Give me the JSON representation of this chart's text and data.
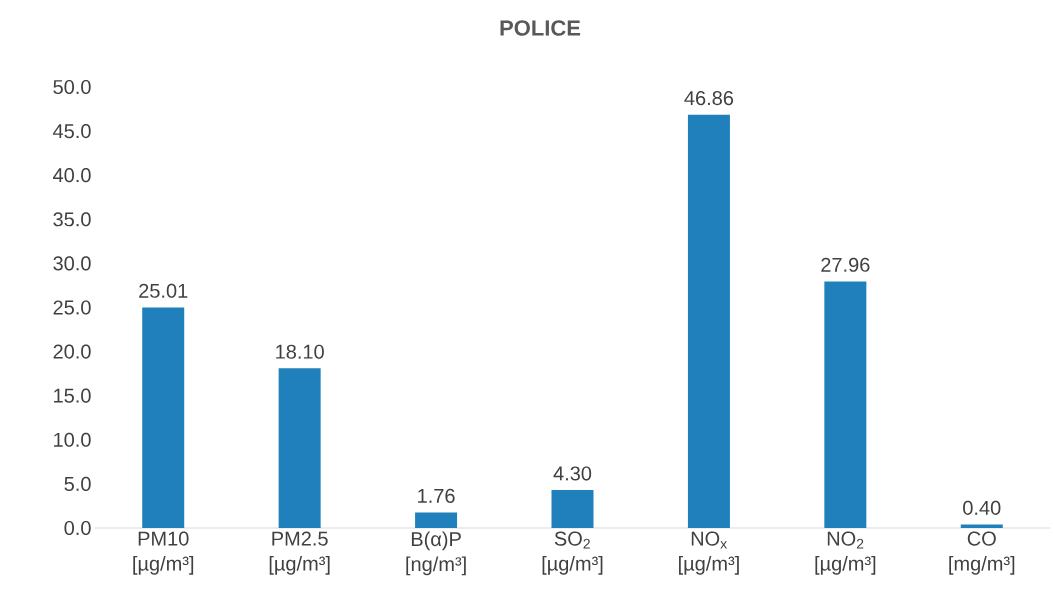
{
  "chart_data": {
    "type": "bar",
    "title": "POLICE",
    "categories": [
      "PM10 [µg/m³]",
      "PM2.5 [µg/m³]",
      "B(α)P [ng/m³]",
      "SO$_{2}$ [µg/m³]",
      "NO$_{x}$ [µg/m³]",
      "NO$_{2}$ [µg/m³]",
      "CO [mg/m³]"
    ],
    "values": [
      25.01,
      18.1,
      1.76,
      4.3,
      46.86,
      27.96,
      0.4
    ],
    "value_labels": [
      "25.01",
      "18.10",
      "1.76",
      "4.30",
      "46.86",
      "27.96",
      "0.40"
    ],
    "color": "#1f80bb",
    "ylim": [
      0,
      50
    ],
    "yticks": [
      {
        "value": 0,
        "label": "0.0"
      },
      {
        "value": 5,
        "label": "5.0"
      },
      {
        "value": 10,
        "label": "10.0"
      },
      {
        "value": 15,
        "label": "15.0"
      },
      {
        "value": 20,
        "label": "20.0"
      },
      {
        "value": 25,
        "label": "25.0"
      },
      {
        "value": 30,
        "label": "30.0"
      },
      {
        "value": 35,
        "label": "35.0"
      },
      {
        "value": 40,
        "label": "40.0"
      },
      {
        "value": 45,
        "label": "45.0"
      },
      {
        "value": 50,
        "label": "50.0"
      }
    ]
  }
}
